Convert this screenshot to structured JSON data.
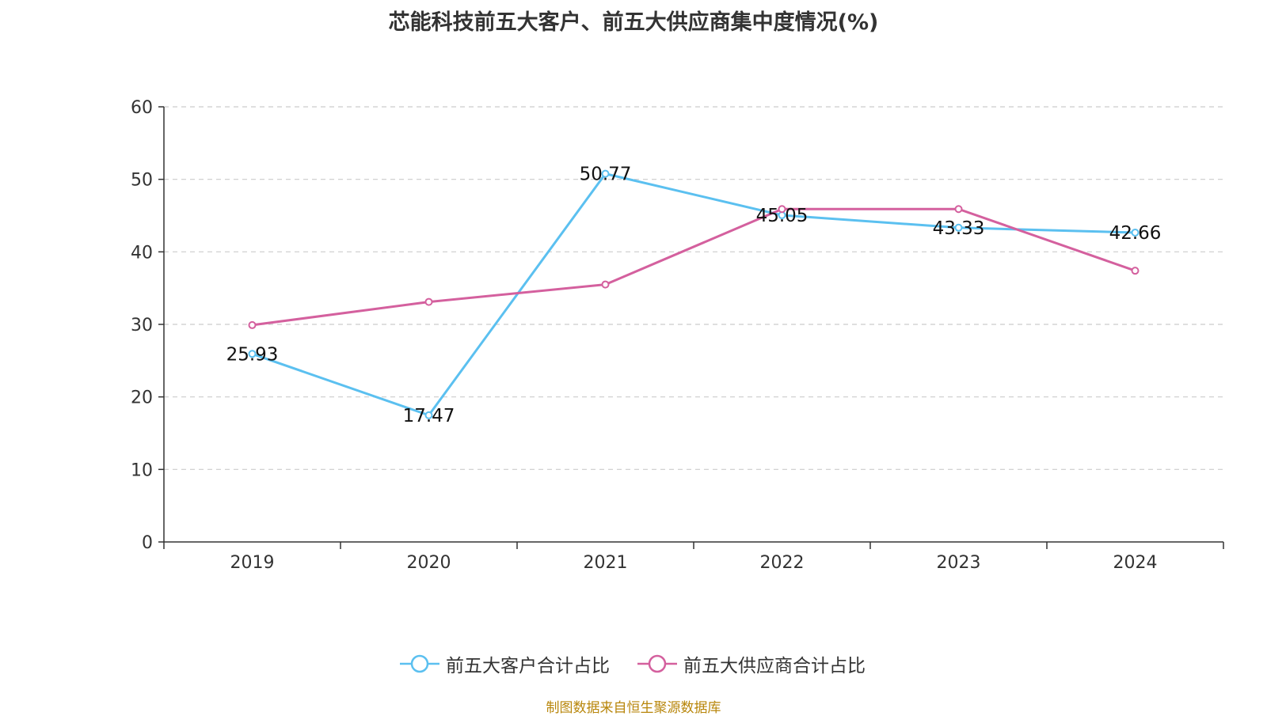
{
  "chart_data": {
    "type": "line",
    "title": "芯能科技前五大客户、前五大供应商集中度情况(%)",
    "categories": [
      "2019",
      "2020",
      "2021",
      "2022",
      "2023",
      "2024"
    ],
    "ylim": [
      0,
      60
    ],
    "yticks": [
      0,
      10,
      20,
      30,
      40,
      50,
      60
    ],
    "grid": true,
    "legend_position": "bottom",
    "series": [
      {
        "name": "前五大客户合计占比",
        "color": "#5bc0f0",
        "values": [
          25.93,
          17.47,
          50.77,
          45.05,
          43.33,
          42.66
        ],
        "labels": [
          "25.93",
          "17.47",
          "50.77",
          "45.05",
          "43.33",
          "42.66"
        ]
      },
      {
        "name": "前五大供应商合计占比",
        "color": "#d4609e",
        "values": [
          29.9,
          33.1,
          35.5,
          45.9,
          45.9,
          37.4
        ]
      }
    ]
  },
  "source": "制图数据来自恒生聚源数据库"
}
